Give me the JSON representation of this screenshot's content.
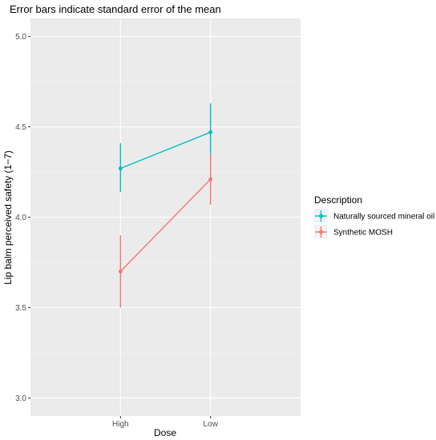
{
  "chart_data": {
    "type": "line",
    "title": "Error bars indicate standard error of the mean",
    "xlabel": "Dose",
    "ylabel": "Lip balm perceived safety (1−7)",
    "categories": [
      "High",
      "Low"
    ],
    "ylim": [
      2.9,
      5.1
    ],
    "yticks": [
      3.0,
      3.5,
      4.0,
      4.5,
      5.0
    ],
    "ytick_labels": [
      "3.0",
      "3.5",
      "4.0",
      "4.5",
      "5.0"
    ],
    "grid": true,
    "legend": {
      "title": "Description",
      "placement": "right"
    },
    "series": [
      {
        "name": "Naturally sourced mineral oil",
        "color": "#00bfc4",
        "values": [
          4.27,
          4.47
        ],
        "error_low": [
          4.14,
          4.31
        ],
        "error_high": [
          4.41,
          4.63
        ]
      },
      {
        "name": "Synthetic MOSH",
        "color": "#f8766d",
        "values": [
          3.7,
          4.21
        ],
        "error_low": [
          3.5,
          4.07
        ],
        "error_high": [
          3.9,
          4.35
        ]
      }
    ]
  }
}
